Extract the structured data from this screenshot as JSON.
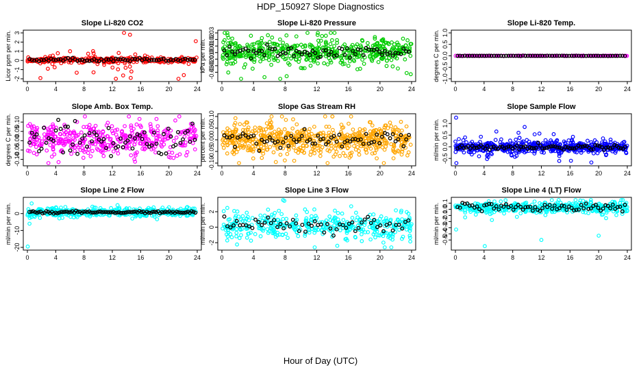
{
  "figure": {
    "title": "HDP_150927  Slope Diagnostics",
    "xlabel": "Hour of Day (UTC)",
    "overlay_color": "#000000"
  },
  "chart_data": [
    {
      "type": "scatter",
      "title": "Slope Li-820 CO2",
      "ylabel": "Licor ppm per min.",
      "color": "#ff0000",
      "xlim": [
        0,
        24
      ],
      "ylim": [
        -2,
        3
      ],
      "xticks": [
        0,
        4,
        8,
        12,
        16,
        20,
        24
      ],
      "yticks": [
        -2,
        -1,
        0,
        1,
        2,
        3
      ],
      "ytick_labels": [
        "-2",
        "-1",
        "0",
        "1",
        "2",
        "3"
      ],
      "center": 0.05,
      "spread": 0.14,
      "outlier_spread": 0.9,
      "overlay_spread": 0.08,
      "n": 320,
      "n_overlay": 70,
      "notable_points": [
        {
          "x": 14.5,
          "y": 2.8
        },
        {
          "x": 14.6,
          "y": -1.9
        },
        {
          "x": 14.7,
          "y": -1.2
        },
        {
          "x": 23.8,
          "y": 2.1
        },
        {
          "x": 22.1,
          "y": -1.6
        }
      ]
    },
    {
      "type": "scatter",
      "title": "Slope Li-820 Pressure",
      "ylabel": "kPa per min.",
      "color": "#00cc00",
      "xlim": [
        0,
        24
      ],
      "ylim": [
        -0.04,
        0.03
      ],
      "xticks": [
        0,
        4,
        8,
        12,
        16,
        20,
        24
      ],
      "yticks": [
        -0.03,
        -0.02,
        -0.01,
        0,
        0.01,
        0.02,
        0.03
      ],
      "ytick_labels": [
        "-0.03",
        "-0.02",
        "-0.01",
        "0.00",
        "0.01",
        "0.02",
        "0.03"
      ],
      "center": 0.001,
      "spread": 0.009,
      "outlier_spread": 0.02,
      "overlay_spread": 0.004,
      "n": 520,
      "n_overlay": 70,
      "notable_points": [
        {
          "x": 8.2,
          "y": -0.036
        },
        {
          "x": 23.9,
          "y": -0.033
        }
      ]
    },
    {
      "type": "scatter",
      "title": "Slope Li-820 Temp.",
      "ylabel": "degrees C per min.",
      "color": "#ff00ff",
      "xlim": [
        0,
        24
      ],
      "ylim": [
        -1,
        1
      ],
      "xticks": [
        0,
        4,
        8,
        12,
        16,
        20,
        24
      ],
      "yticks": [
        -1,
        -0.5,
        0,
        0.5,
        1
      ],
      "ytick_labels": [
        "-1.0",
        "-0.5",
        "0.0",
        "0.5",
        "1.0"
      ],
      "center": 0,
      "spread": 0.004,
      "outlier_spread": 0.004,
      "overlay_spread": 0.004,
      "n": 160,
      "n_overlay": 70,
      "notable_points": []
    },
    {
      "type": "scatter",
      "title": "Slope Amb. Box Temp.",
      "ylabel": "degrees C per min.",
      "color": "#ff00ff",
      "xlim": [
        0,
        24
      ],
      "ylim": [
        -0.12,
        0.13
      ],
      "xticks": [
        0,
        4,
        8,
        12,
        16,
        20,
        24
      ],
      "yticks": [
        -0.1,
        -0.05,
        0,
        0.05,
        0.1
      ],
      "ytick_labels": [
        "-0.10",
        "-0.05",
        "0.00",
        "0.05",
        "0.10"
      ],
      "center": 0.01,
      "spread": 0.04,
      "outlier_spread": 0.08,
      "overlay_spread": 0.04,
      "n": 420,
      "n_overlay": 70,
      "notable_points": [
        {
          "x": 4.4,
          "y": -0.115
        }
      ]
    },
    {
      "type": "scatter",
      "title": "Slope Gas Stream RH",
      "ylabel": "percent per min.",
      "color": "#ffa500",
      "xlim": [
        0,
        24
      ],
      "ylim": [
        -0.1,
        0.1
      ],
      "xticks": [
        0,
        4,
        8,
        12,
        16,
        20,
        24
      ],
      "yticks": [
        -0.1,
        -0.05,
        0,
        0.05,
        0.1
      ],
      "ytick_labels": [
        "-0.10",
        "-0.05",
        "0.00",
        "0.05",
        "0.10"
      ],
      "center": 0.0,
      "spread": 0.03,
      "outlier_spread": 0.06,
      "overlay_spread": 0.02,
      "n": 620,
      "n_overlay": 70,
      "notable_points": []
    },
    {
      "type": "scatter",
      "title": "Slope Sample Flow",
      "ylabel": "ml/min per min.",
      "color": "#0000ff",
      "xlim": [
        0,
        24
      ],
      "ylim": [
        -0.7,
        1.3
      ],
      "xticks": [
        0,
        4,
        8,
        12,
        16,
        20,
        24
      ],
      "yticks": [
        -0.5,
        0,
        0.5,
        1
      ],
      "ytick_labels": [
        "-0.5",
        "0.0",
        "0.5",
        "1.0"
      ],
      "center": -0.02,
      "spread": 0.12,
      "outlier_spread": 0.3,
      "overlay_spread": 0.05,
      "n": 560,
      "n_overlay": 80,
      "notable_points": [
        {
          "x": 0.1,
          "y": 1.25
        }
      ]
    },
    {
      "type": "scatter",
      "title": "Slope Line 2 Flow",
      "ylabel": "ml/min per min.",
      "color": "#00ffff",
      "xlim": [
        0,
        24
      ],
      "ylim": [
        -20,
        8
      ],
      "xticks": [
        0,
        4,
        8,
        12,
        16,
        20,
        24
      ],
      "yticks": [
        -20,
        -10,
        0
      ],
      "ytick_labels": [
        "-20",
        "-10",
        "0"
      ],
      "center": 0.8,
      "spread": 1.2,
      "outlier_spread": 2.5,
      "overlay_spread": 0.3,
      "n": 420,
      "n_overlay": 90,
      "notable_points": [
        {
          "x": 0.05,
          "y": -19.5
        },
        {
          "x": 0.3,
          "y": -6
        },
        {
          "x": 0.6,
          "y": 6
        }
      ]
    },
    {
      "type": "scatter",
      "title": "Slope Line 3 Flow",
      "ylabel": "ml/min per min.",
      "color": "#00ffff",
      "xlim": [
        0,
        24
      ],
      "ylim": [
        -2.6,
        3.5
      ],
      "xticks": [
        0,
        4,
        8,
        12,
        16,
        20,
        24
      ],
      "yticks": [
        -2,
        0,
        2
      ],
      "ytick_labels": [
        "-2",
        "0",
        "2"
      ],
      "center": 0.2,
      "spread": 0.75,
      "outlier_spread": 1.5,
      "overlay_spread": 0.6,
      "n": 420,
      "n_overlay": 60,
      "notable_points": [
        {
          "x": 7.9,
          "y": 3.4
        },
        {
          "x": 14.6,
          "y": -2.4
        }
      ]
    },
    {
      "type": "scatter",
      "title": "Slope Line 4 (LT) Flow",
      "ylabel": "ml/min per min.",
      "color": "#00ffff",
      "xlim": [
        0,
        24
      ],
      "ylim": [
        -0.62,
        0.15
      ],
      "xticks": [
        0,
        4,
        8,
        12,
        16,
        20,
        24
      ],
      "yticks": [
        -0.5,
        -0.4,
        -0.3,
        -0.2,
        -0.1,
        0,
        0.1
      ],
      "ytick_labels": [
        "-0.5",
        "-0.4",
        "-0.3",
        "-0.2",
        "-0.1",
        "0.0",
        "0.1"
      ],
      "center": 0.03,
      "spread": 0.04,
      "outlier_spread": 0.08,
      "overlay_spread": 0.03,
      "n": 470,
      "n_overlay": 70,
      "notable_points": [
        {
          "x": 0.1,
          "y": -0.33
        },
        {
          "x": 4.1,
          "y": -0.6
        },
        {
          "x": 12,
          "y": -0.5
        },
        {
          "x": 20,
          "y": -0.43
        }
      ]
    }
  ]
}
